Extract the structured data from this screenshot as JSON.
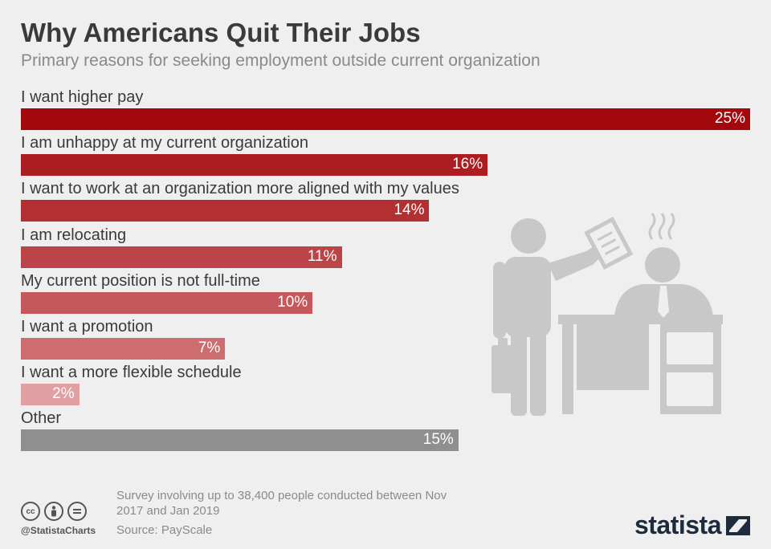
{
  "header": {
    "title": "Why Americans Quit Their Jobs",
    "subtitle": "Primary reasons for seeking employment outside current organization"
  },
  "chart_data": {
    "type": "bar",
    "orientation": "horizontal",
    "title": "Why Americans Quit Their Jobs",
    "subtitle": "Primary reasons for seeking employment outside current organization",
    "xlabel": "",
    "ylabel": "",
    "unit": "%",
    "xlim": [
      0,
      25
    ],
    "categories": [
      "I want higher pay",
      "I am unhappy at my current organization",
      "I want to work at an organization more aligned with my values",
      "I am relocating",
      "My current position is not full-time",
      "I want a promotion",
      "I want a more flexible schedule",
      "Other"
    ],
    "values": [
      25,
      16,
      14,
      11,
      10,
      7,
      2,
      15
    ],
    "value_labels": [
      "25%",
      "16%",
      "14%",
      "11%",
      "10%",
      "7%",
      "2%",
      "15%"
    ],
    "colors": [
      "#a3080c",
      "#ac1d21",
      "#b22f32",
      "#bb4448",
      "#c4585c",
      "#ce6d70",
      "#e0a0a2",
      "#8f8f8f"
    ]
  },
  "footer": {
    "note": "Survey involving up to 38,400 people conducted between Nov 2017 and Jan 2019",
    "source": "Source: PayScale",
    "handle": "@StatistaCharts",
    "brand": "statista",
    "cc_icons": [
      "cc-icon",
      "by-icon",
      "nd-icon"
    ]
  }
}
